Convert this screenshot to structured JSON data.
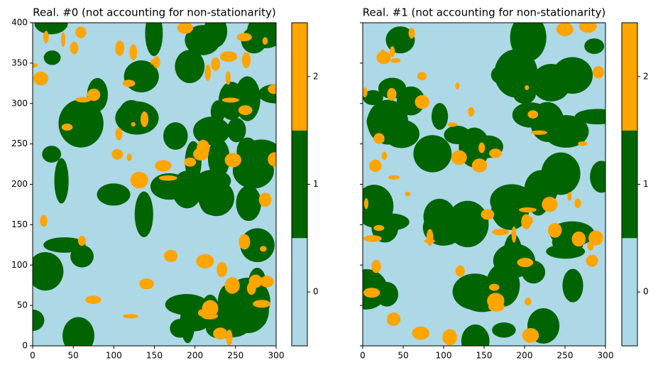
{
  "chart_data": [
    {
      "type": "heatmap",
      "title": "Real. #0 (not accounting for non-stationarity)",
      "xlim": [
        0,
        300
      ],
      "ylim": [
        0,
        400
      ],
      "xticks": [
        0,
        50,
        100,
        150,
        200,
        250,
        300
      ],
      "yticks": [
        0,
        50,
        100,
        150,
        200,
        250,
        300,
        350,
        400
      ],
      "colors": [
        "#add8e6",
        "#006400",
        "#ffa500"
      ],
      "colorbar": {
        "lim": [
          -0.5,
          2.5
        ],
        "ticks": [
          0,
          1,
          2
        ]
      }
    },
    {
      "type": "heatmap",
      "title": "Real. #1 (not accounting for non-stationarity)",
      "xlim": [
        0,
        300
      ],
      "ylim": [
        0,
        400
      ],
      "sharey": true,
      "xticks": [
        0,
        50,
        100,
        150,
        200,
        250,
        300
      ],
      "colors": [
        "#add8e6",
        "#006400",
        "#ffa500"
      ],
      "colorbar": {
        "lim": [
          -0.5,
          2.5
        ],
        "ticks": [
          0,
          1,
          2
        ]
      }
    }
  ]
}
